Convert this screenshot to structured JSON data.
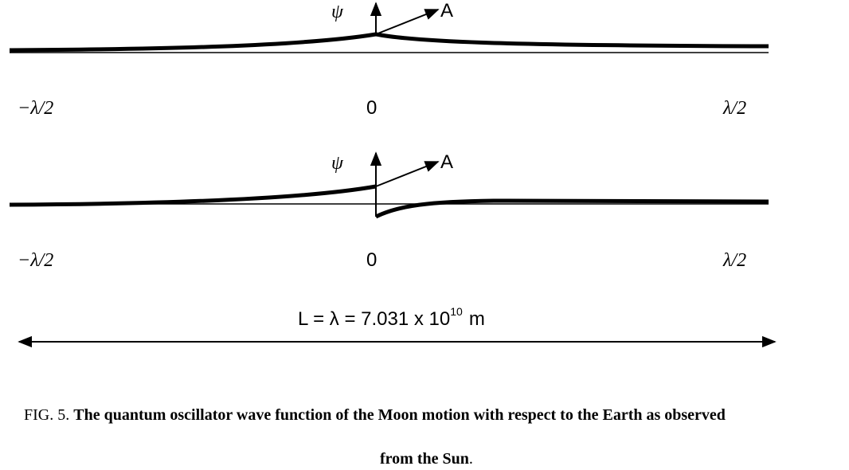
{
  "panels": [
    {
      "psi_label": "ψ",
      "arrow_label": "A",
      "left_label": "−λ/2",
      "center_label": "0",
      "right_label": "λ/2"
    },
    {
      "psi_label": "ψ",
      "arrow_label": "A",
      "left_label": "−λ/2",
      "center_label": "0",
      "right_label": "λ/2"
    }
  ],
  "length": {
    "text": "L = λ = 7.031 x 10",
    "exponent": "10",
    "unit": "m"
  },
  "caption": {
    "label": "FIG. 5.",
    "text": "The quantum oscillator wave function of the Moon motion with respect to the Earth as observed",
    "text_2": "from the Sun",
    "end": "."
  }
}
